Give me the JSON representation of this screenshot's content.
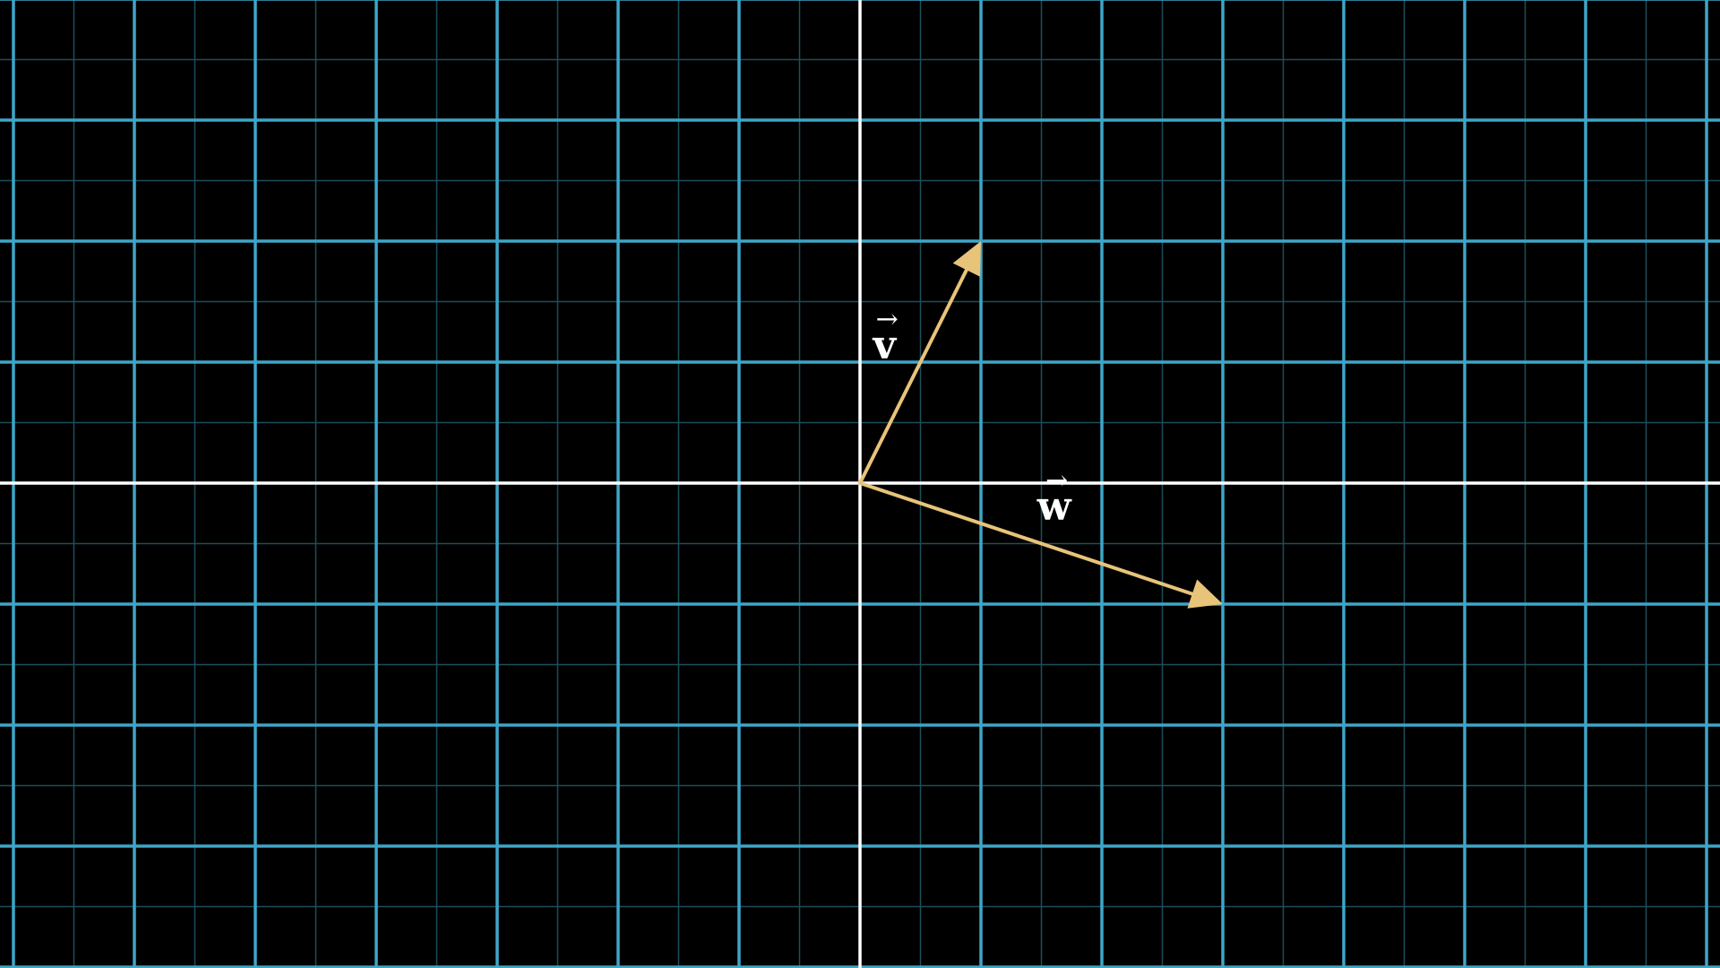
{
  "plane": {
    "background_color": "#000000",
    "major_grid_color": "#3ea6c8",
    "minor_grid_color": "#1d4e5c",
    "axis_color": "#ffffff",
    "grid_step_units": 1,
    "minor_subdivisions": 2,
    "x_range": [
      -7.1,
      7.1
    ],
    "y_range": [
      -4,
      4
    ]
  },
  "vectors": [
    {
      "id": "v",
      "label": "v",
      "arrow_symbol": "→",
      "x": 1,
      "y": 2,
      "color": "#e8c37a"
    },
    {
      "id": "w",
      "label": "w",
      "arrow_symbol": "→",
      "x": 3,
      "y": -1,
      "color": "#e8c37a"
    }
  ]
}
